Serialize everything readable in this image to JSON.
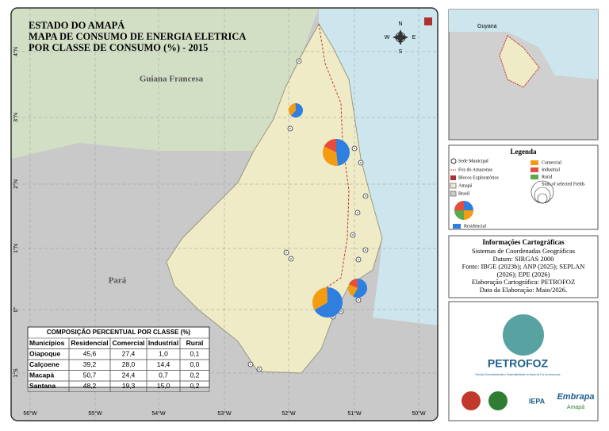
{
  "title": [
    "ESTADO DO AMAPÁ",
    "MAPA DE CONSUMO DE ENERGIA ELETRICA",
    "POR CLASSE DE CONSUMO (%) - 2015"
  ],
  "map_labels": {
    "french_guiana": "Guiana Francesa",
    "para": "Pará",
    "guyana": "Guyana"
  },
  "compass": {
    "n": "N",
    "e": "E",
    "s": "S",
    "w": "W"
  },
  "lat_labels": [
    "4°N",
    "3°N",
    "2°N",
    "1°N",
    "0°",
    "1°S"
  ],
  "lon_labels": [
    "56°W",
    "55°W",
    "54°W",
    "53°W",
    "52°W",
    "51°W",
    "50°W"
  ],
  "table": {
    "title": "COMPOSIÇÃO PERCENTUAL POR CLASSE (%)",
    "header": [
      "Municípios",
      "Residencial",
      "Comercial",
      "Industrial",
      "Rural"
    ],
    "rows": [
      [
        "Oiapoque",
        "45,6",
        "27,4",
        "1,0",
        "0,1"
      ],
      [
        "Calçoene",
        "39,2",
        "28,0",
        "14,4",
        "0,0"
      ],
      [
        "Macapá",
        "50,7",
        "24,4",
        "0,7",
        "0,2"
      ],
      [
        "Santana",
        "48,2",
        "19,3",
        "15,0",
        "0,2"
      ]
    ]
  },
  "legend": {
    "title": "Legenda",
    "items": [
      "Sede Municipal",
      "Foz do Amazonas",
      "Blocos Exploratórios",
      "Amapá",
      "Brasil",
      "Comercial",
      "Industrial",
      "Rural",
      "Sum of selected Fields",
      "Residencial"
    ]
  },
  "info": {
    "title": "Informações Cartográficas",
    "lines": [
      "Sistemas de Coordenadas Geográficas",
      "Datum: SIRGAS 2000",
      "Fonte: IBGE (2023b); ANP (2025); SEPLAN",
      "(2026); EPE (2026)",
      "Elaboração Cartográfica: PETROFOZ",
      "Data da Elaboração: Maio/2026."
    ]
  },
  "logos": {
    "name": "PETROFOZ",
    "tagline": "Estudos Socioambientais e Sustentabilidade na Bacia da Foz do Amazonas",
    "iepa": "IEPA",
    "embrapa": "Embrapa",
    "amapa": "Amapá"
  }
}
